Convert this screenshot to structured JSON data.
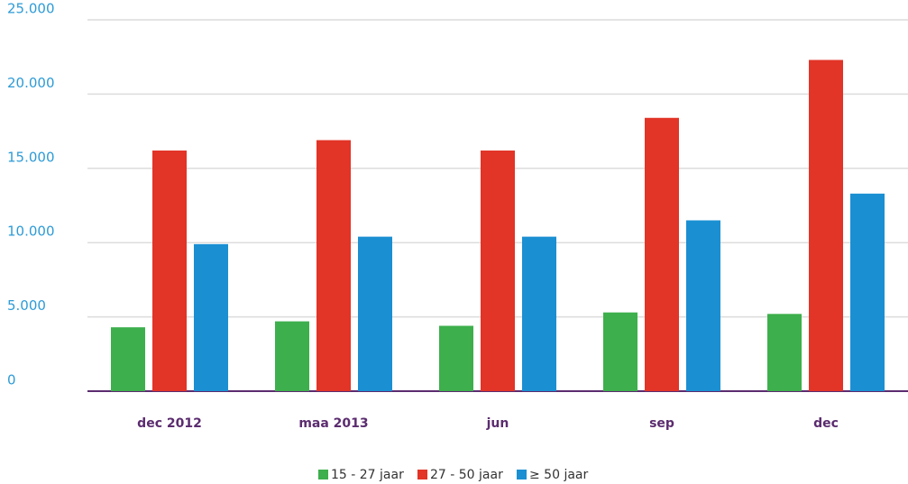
{
  "chart_data": {
    "type": "bar",
    "categories": [
      "dec 2012",
      "maa 2013",
      "jun",
      "sep",
      "dec"
    ],
    "series": [
      {
        "name": "15 - 27 jaar",
        "color": "#3daf4c",
        "values": [
          4300,
          4700,
          4400,
          5300,
          5200
        ]
      },
      {
        "name": "27 - 50 jaar",
        "color": "#e23427",
        "values": [
          16200,
          16900,
          16200,
          18400,
          22300
        ]
      },
      {
        "name": "≥ 50 jaar",
        "color": "#1a8fd2",
        "values": [
          9900,
          10400,
          10400,
          11500,
          13300
        ]
      }
    ],
    "ylim": [
      0,
      25000
    ],
    "yticks": [
      0,
      {
        "value": 5000,
        "label": "5.000"
      },
      {
        "value": 10000,
        "label": "10.000"
      },
      {
        "value": 15000,
        "label": "15.000"
      },
      {
        "value": 20000,
        "label": "20.000"
      },
      {
        "value": 25000,
        "label": "25.000"
      }
    ],
    "grid": true,
    "legend": "bottom"
  }
}
